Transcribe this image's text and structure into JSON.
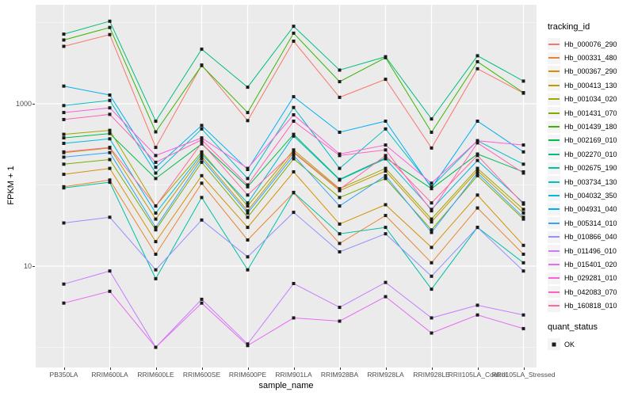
{
  "chart_data": {
    "type": "line",
    "title": "",
    "xlabel": "sample_name",
    "ylabel": "FPKM + 1",
    "y_scale": "log10",
    "y_ticks": [
      {
        "value": 1000,
        "label": "1000"
      },
      {
        "value": 10,
        "label": "10"
      }
    ],
    "y_major_grid": [
      10,
      1000
    ],
    "y_minor_grid": [
      1,
      100,
      10000
    ],
    "grid": true,
    "panel_background": "#EBEBEB",
    "gridline_color": "#FFFFFF",
    "point_color": "#1a1a1a",
    "legend_title": "tracking_id",
    "legend_position": "right",
    "quant_legend_title": "quant_status",
    "quant_legend_value": "OK",
    "categories": [
      "PB350LA",
      "RRIM600LA",
      "RRIM600LE",
      "RRIM600SE",
      "RRIM600PE",
      "RRIM901LA",
      "RRIM928BA",
      "RRIM928LA",
      "RRIM928LE",
      "RRII105LA_Control",
      "RRII105LA_Stressed"
    ],
    "series": [
      {
        "name": "Hb_000076_290",
        "color": "#F8766D",
        "values": [
          5100,
          7100,
          290,
          3000,
          620,
          5900,
          1200,
          2000,
          285,
          2700,
          1350
        ]
      },
      {
        "name": "Hb_000331_480",
        "color": "#EA8331",
        "values": [
          95,
          115,
          14,
          105,
          21,
          80,
          19,
          42,
          11,
          52,
          14
        ]
      },
      {
        "name": "Hb_000367_290",
        "color": "#D89000",
        "values": [
          135,
          160,
          20,
          130,
          30,
          145,
          33,
          57,
          17,
          75,
          18
        ]
      },
      {
        "name": "Hb_000413_130",
        "color": "#C09B00",
        "values": [
          250,
          285,
          38,
          225,
          48,
          250,
          85,
          148,
          35,
          150,
          45
        ]
      },
      {
        "name": "Hb_001034_020",
        "color": "#A3A500",
        "values": [
          420,
          470,
          55,
          255,
          55,
          270,
          90,
          160,
          38,
          160,
          50
        ]
      },
      {
        "name": "Hb_001431_070",
        "color": "#7CAE00",
        "values": [
          180,
          205,
          28,
          190,
          40,
          210,
          70,
          120,
          28,
          130,
          38
        ]
      },
      {
        "name": "Hb_001439_180",
        "color": "#39B600",
        "values": [
          6100,
          8700,
          450,
          2950,
          780,
          7400,
          1870,
          3700,
          445,
          3300,
          1370
        ]
      },
      {
        "name": "Hb_002169_010",
        "color": "#00BB4E",
        "values": [
          380,
          430,
          120,
          320,
          95,
          420,
          117,
          215,
          90,
          240,
          145
        ]
      },
      {
        "name": "Hb_002270_010",
        "color": "#00BF7D",
        "values": [
          7200,
          10400,
          610,
          4700,
          1600,
          9000,
          2600,
          3800,
          650,
          3900,
          1900
        ]
      },
      {
        "name": "Hb_002675_190",
        "color": "#00C1A3",
        "values": [
          92,
          108,
          7,
          70,
          9,
          81,
          25,
          30,
          5.2,
          30,
          11
        ]
      },
      {
        "name": "Hb_003734_130",
        "color": "#00BFC4",
        "values": [
          950,
          1100,
          140,
          490,
          120,
          900,
          160,
          490,
          95,
          350,
          180
        ]
      },
      {
        "name": "Hb_004032_350",
        "color": "#00BAE0",
        "values": [
          325,
          370,
          45,
          240,
          60,
          400,
          115,
          210,
          50,
          200,
          60
        ]
      },
      {
        "name": "Hb_004931_040",
        "color": "#00B0F6",
        "values": [
          1650,
          1280,
          165,
          540,
          155,
          1220,
          445,
          610,
          92,
          610,
          255
        ]
      },
      {
        "name": "Hb_005314_010",
        "color": "#35A2FF",
        "values": [
          220,
          250,
          30,
          210,
          45,
          230,
          55,
          130,
          26,
          140,
          40
        ]
      },
      {
        "name": "Hb_010866_040",
        "color": "#9590FF",
        "values": [
          34,
          40,
          9,
          37,
          13,
          46,
          15,
          25,
          7.5,
          30,
          8.7
        ]
      },
      {
        "name": "Hb_011496_010",
        "color": "#C77CFF",
        "values": [
          6.0,
          8.7,
          1.0,
          3.9,
          1.1,
          6.1,
          3.1,
          6.3,
          2.3,
          3.3,
          2.5
        ]
      },
      {
        "name": "Hb_015401_020",
        "color": "#E76BF3",
        "values": [
          3.5,
          4.9,
          1.0,
          3.5,
          1.05,
          2.3,
          2.1,
          4.2,
          1.5,
          2.5,
          1.7
        ]
      },
      {
        "name": "Hb_029281_010",
        "color": "#FA62DB",
        "values": [
          780,
          890,
          230,
          380,
          160,
          730,
          240,
          310,
          105,
          350,
          310
        ]
      },
      {
        "name": "Hb_042083_070",
        "color": "#FF62BC",
        "values": [
          640,
          740,
          190,
          360,
          100,
          610,
          230,
          270,
          48,
          330,
          140
        ]
      },
      {
        "name": "Hb_160818_010",
        "color": "#FF6A98",
        "values": [
          255,
          290,
          55,
          330,
          75,
          255,
          88,
          230,
          60,
          230,
          58
        ]
      }
    ]
  }
}
